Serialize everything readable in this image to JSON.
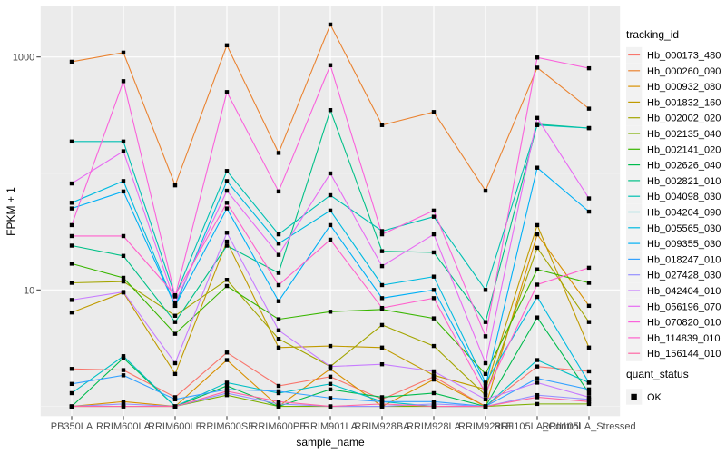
{
  "figure": {
    "background": "#FFFFFF",
    "panel_background": "#EBEBEB",
    "grid_major_color": "#FFFFFF",
    "grid_minor_color": "#F5F5F5",
    "axis_text_color": "#4D4D4D",
    "tick_mark_color": "#333333",
    "point_color": "#000000",
    "legend_key_fill": "#F2F2F2"
  },
  "chart_data": {
    "type": "line",
    "title": "",
    "xlabel": "sample_name",
    "ylabel": "FPKM + 1",
    "y_scale": "log10",
    "y_major_ticks": [
      10,
      1000
    ],
    "y_major_tick_labels": [
      "10",
      "1000"
    ],
    "y_minor_gridlines": [
      1,
      100
    ],
    "ylim": [
      0.75,
      2800
    ],
    "grid": true,
    "point_marker": "filled-square",
    "legend": {
      "title": "tracking_id",
      "position": "right"
    },
    "legend2": {
      "title": "quant_status",
      "items": [
        {
          "label": "OK",
          "marker": "black-square"
        }
      ]
    },
    "categories": [
      "PB350LA",
      "RRIM600LA",
      "RRIM600LE",
      "RRIM600SE",
      "RRIM600PE",
      "RRIM901LA",
      "RRIM928BA",
      "RRIM928LA",
      "RRIM928LE",
      "RRII105LA_Control",
      "RRII105LA_Stressed"
    ],
    "series": [
      {
        "name": "Hb_000173_480",
        "color": "#F8766D",
        "values": [
          2.1,
          2.05,
          1.2,
          2.9,
          1.5,
          1.8,
          1.15,
          1.8,
          1.0,
          2.2,
          2.0
        ]
      },
      {
        "name": "Hb_000260_090",
        "color": "#EA8331",
        "values": [
          910,
          1090,
          79,
          1260,
          150,
          1900,
          260,
          337,
          71,
          810,
          360
        ]
      },
      {
        "name": "Hb_000932_080",
        "color": "#D89000",
        "values": [
          1.0,
          1.1,
          1.0,
          2.5,
          1.0,
          2.1,
          1.0,
          1.7,
          1.0,
          30,
          7.3
        ]
      },
      {
        "name": "Hb_001832_160",
        "color": "#C09B00",
        "values": [
          6.4,
          9.5,
          1.9,
          26,
          3.2,
          3.3,
          3.2,
          1.85,
          1.4,
          36,
          3.2
        ]
      },
      {
        "name": "Hb_002002_020",
        "color": "#A3A500",
        "values": [
          11.5,
          11.8,
          6.0,
          12.2,
          3.8,
          2.2,
          5.0,
          3.3,
          1.25,
          23,
          5.3
        ]
      },
      {
        "name": "Hb_002135_040",
        "color": "#7CAE00",
        "values": [
          1.0,
          1.0,
          1.0,
          1.25,
          1.0,
          1.0,
          1.0,
          1.0,
          1.0,
          1.05,
          1.05
        ]
      },
      {
        "name": "Hb_002141_020",
        "color": "#39B600",
        "values": [
          16.8,
          12.7,
          4.2,
          10.8,
          5.6,
          6.5,
          6.8,
          5.7,
          1.9,
          15,
          11.5
        ]
      },
      {
        "name": "Hb_002626_040",
        "color": "#00BB4E",
        "values": [
          1.0,
          2.6,
          1.0,
          1.5,
          1.0,
          1.4,
          1.2,
          1.3,
          1.0,
          5.8,
          1.3
        ]
      },
      {
        "name": "Hb_002821_010",
        "color": "#00C087",
        "values": [
          24,
          19.6,
          5.3,
          24,
          14,
          350,
          21.5,
          21,
          5.3,
          265,
          245
        ]
      },
      {
        "name": "Hb_004098_030",
        "color": "#00C0B2",
        "values": [
          188,
          188,
          8.8,
          105,
          30,
          65,
          32,
          42.5,
          10,
          260,
          245
        ]
      },
      {
        "name": "Hb_004204_090",
        "color": "#00BFC4",
        "values": [
          1.3,
          2.7,
          1.0,
          1.6,
          1.3,
          1.56,
          1.1,
          1.0,
          1.0,
          2.5,
          1.6
        ]
      },
      {
        "name": "Hb_005565_030",
        "color": "#00BAE0",
        "values": [
          56,
          86,
          7.3,
          86,
          25,
          48,
          11,
          13,
          1.6,
          8.7,
          1.6
        ]
      },
      {
        "name": "Hb_009355_030",
        "color": "#00B0F6",
        "values": [
          50,
          70,
          7.3,
          50,
          8,
          36,
          8.5,
          10,
          1.5,
          112,
          47
        ]
      },
      {
        "name": "Hb_018247_010",
        "color": "#35A2FF",
        "values": [
          1.56,
          1.85,
          1.15,
          1.4,
          1.35,
          1.18,
          1.1,
          1.1,
          1.0,
          1.74,
          1.4
        ]
      },
      {
        "name": "Hb_027428_030",
        "color": "#9590FF",
        "values": [
          1.0,
          1.05,
          1.0,
          1.3,
          1.05,
          1.0,
          1.0,
          1.05,
          1.0,
          1.25,
          1.15
        ]
      },
      {
        "name": "Hb_042404_010",
        "color": "#C77CFF",
        "values": [
          8.2,
          9.6,
          2.35,
          31,
          4.5,
          2.2,
          2.3,
          2.0,
          1.15,
          1.6,
          1.2
        ]
      },
      {
        "name": "Hb_056196_070",
        "color": "#E76BF3",
        "values": [
          82,
          155,
          7.8,
          71,
          20,
          100,
          16,
          30,
          2.35,
          300,
          61
        ]
      },
      {
        "name": "Hb_070820_010",
        "color": "#FA62DB",
        "values": [
          36,
          620,
          8.8,
          500,
          70,
          850,
          30,
          48,
          4.0,
          990,
          800
        ]
      },
      {
        "name": "Hb_114839_010",
        "color": "#FF61CC",
        "values": [
          29,
          29,
          9.0,
          56,
          11,
          27,
          7.0,
          8.5,
          1.3,
          11.1,
          15.5
        ]
      },
      {
        "name": "Hb_156144_010",
        "color": "#FF67A4",
        "values": [
          1.0,
          1.0,
          1.0,
          1.35,
          1.1,
          1.0,
          1.05,
          1.0,
          1.0,
          1.2,
          1.1
        ]
      }
    ]
  }
}
